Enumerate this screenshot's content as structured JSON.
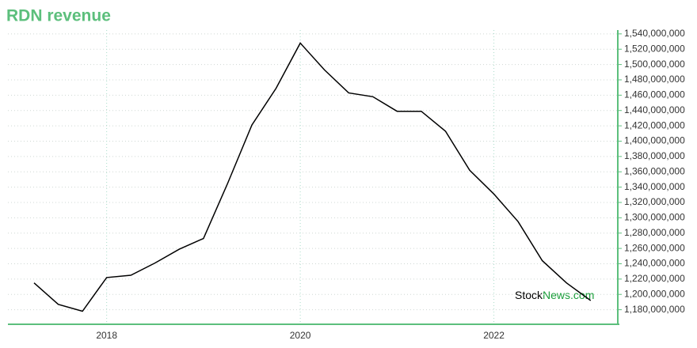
{
  "chart_data": {
    "type": "line",
    "title": "RDN revenue",
    "watermark": {
      "first": "Stock",
      "second": "News.com"
    },
    "x": [
      2017.25,
      2017.5,
      2017.75,
      2018,
      2018.25,
      2018.5,
      2018.75,
      2019,
      2019.25,
      2019.5,
      2019.75,
      2020,
      2020.25,
      2020.5,
      2020.75,
      2021,
      2021.25,
      2021.5,
      2021.75,
      2022,
      2022.25,
      2022.5,
      2022.75,
      2023
    ],
    "series": [
      {
        "name": "RDN revenue",
        "color": "#000000",
        "values": [
          1215000000,
          1187000000,
          1178000000,
          1222000000,
          1225000000,
          1241000000,
          1259000000,
          1273000000,
          1345000000,
          1421000000,
          1469000000,
          1528000000,
          1493000000,
          1463000000,
          1458000000,
          1439000000,
          1439000000,
          1413000000,
          1362000000,
          1331000000,
          1295000000,
          1244000000,
          1215000000,
          1192000000
        ]
      }
    ],
    "xlim": [
      2016.98,
      2023.28
    ],
    "xticks": [
      2018,
      2020,
      2022
    ],
    "ylim": [
      1161000000,
      1545000000
    ],
    "yticks": [
      {
        "value": 1180000000,
        "label": "1,180,000,000"
      },
      {
        "value": 1200000000,
        "label": "1,200,000,000"
      },
      {
        "value": 1220000000,
        "label": "1,220,000,000"
      },
      {
        "value": 1240000000,
        "label": "1,240,000,000"
      },
      {
        "value": 1260000000,
        "label": "1,260,000,000"
      },
      {
        "value": 1280000000,
        "label": "1,280,000,000"
      },
      {
        "value": 1300000000,
        "label": "1,300,000,000"
      },
      {
        "value": 1320000000,
        "label": "1,320,000,000"
      },
      {
        "value": 1340000000,
        "label": "1,340,000,000"
      },
      {
        "value": 1360000000,
        "label": "1,360,000,000"
      },
      {
        "value": 1380000000,
        "label": "1,380,000,000"
      },
      {
        "value": 1400000000,
        "label": "1,400,000,000"
      },
      {
        "value": 1420000000,
        "label": "1,420,000,000"
      },
      {
        "value": 1440000000,
        "label": "1,440,000,000"
      },
      {
        "value": 1460000000,
        "label": "1,460,000,000"
      },
      {
        "value": 1480000000,
        "label": "1,480,000,000"
      },
      {
        "value": 1500000000,
        "label": "1,500,000,000"
      },
      {
        "value": 1520000000,
        "label": "1,520,000,000"
      },
      {
        "value": 1540000000,
        "label": "1,540,000,000"
      }
    ],
    "grid": true
  }
}
